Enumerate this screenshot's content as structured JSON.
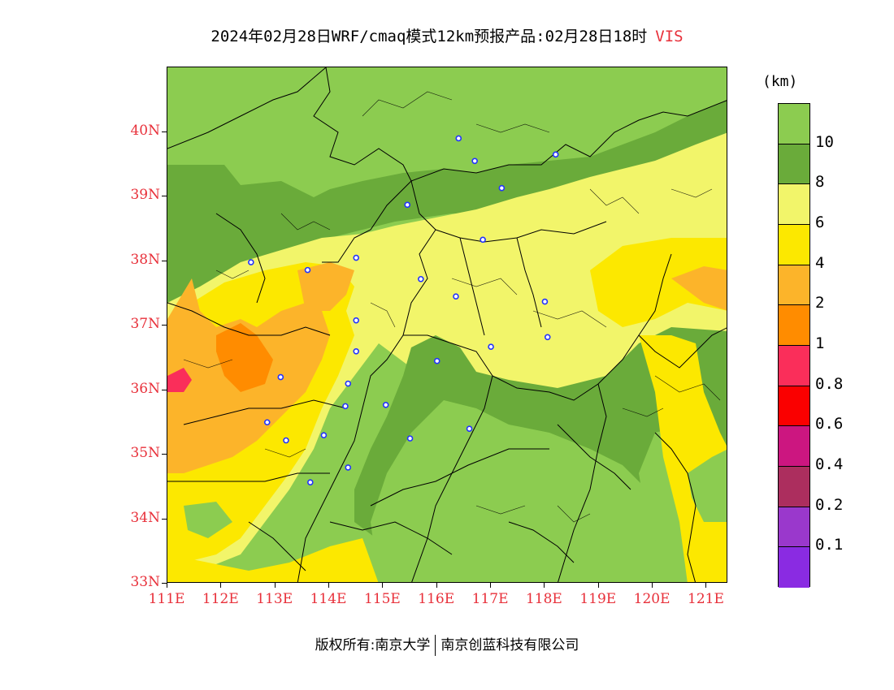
{
  "header": {
    "title": "2024年02月28日WRF/cmaq模式12km预报产品:02月28日18时",
    "variable": "VIS"
  },
  "colors": {
    "label_red": "#e8303a",
    "station_blue": "#2233ff",
    "boundary": "#000000"
  },
  "map": {
    "lat_ticks": [
      "40N",
      "39N",
      "38N",
      "37N",
      "36N",
      "35N",
      "34N",
      "33N"
    ],
    "lon_ticks": [
      "111E",
      "112E",
      "113E",
      "114E",
      "115E",
      "116E",
      "117E",
      "118E",
      "119E",
      "120E",
      "121E"
    ],
    "lon_range": [
      111,
      121.4
    ],
    "lat_range": [
      33,
      41
    ],
    "stations": [
      {
        "lon": 116.4,
        "lat": 39.9
      },
      {
        "lon": 116.7,
        "lat": 39.55
      },
      {
        "lon": 117.2,
        "lat": 39.13
      },
      {
        "lon": 118.2,
        "lat": 39.65
      },
      {
        "lon": 115.45,
        "lat": 38.87
      },
      {
        "lon": 116.85,
        "lat": 38.33
      },
      {
        "lon": 112.55,
        "lat": 37.98
      },
      {
        "lon": 113.6,
        "lat": 37.86
      },
      {
        "lon": 114.5,
        "lat": 38.05
      },
      {
        "lon": 115.7,
        "lat": 37.72
      },
      {
        "lon": 116.35,
        "lat": 37.45
      },
      {
        "lon": 118.0,
        "lat": 37.37
      },
      {
        "lon": 114.5,
        "lat": 37.08
      },
      {
        "lon": 118.05,
        "lat": 36.82
      },
      {
        "lon": 117.0,
        "lat": 36.67
      },
      {
        "lon": 114.5,
        "lat": 36.6
      },
      {
        "lon": 116.0,
        "lat": 36.45
      },
      {
        "lon": 113.1,
        "lat": 36.2
      },
      {
        "lon": 114.35,
        "lat": 36.1
      },
      {
        "lon": 115.05,
        "lat": 35.77
      },
      {
        "lon": 114.3,
        "lat": 35.75
      },
      {
        "lon": 112.85,
        "lat": 35.5
      },
      {
        "lon": 116.6,
        "lat": 35.4
      },
      {
        "lon": 113.9,
        "lat": 35.3
      },
      {
        "lon": 113.2,
        "lat": 35.22
      },
      {
        "lon": 115.5,
        "lat": 35.25
      },
      {
        "lon": 114.35,
        "lat": 34.8
      },
      {
        "lon": 113.65,
        "lat": 34.57
      }
    ]
  },
  "legend": {
    "unit": "(km)",
    "segments": [
      {
        "color": "#8ccc50"
      },
      {
        "color": "#6aab3a"
      },
      {
        "color": "#f2f56a"
      },
      {
        "color": "#fce800"
      },
      {
        "color": "#fcb42a"
      },
      {
        "color": "#ff8c00"
      },
      {
        "color": "#fa2e5a"
      },
      {
        "color": "#fa0000"
      },
      {
        "color": "#cc1680"
      },
      {
        "color": "#ac2e5e"
      },
      {
        "color": "#9a38cc"
      },
      {
        "color": "#8a2be2"
      }
    ],
    "labels": [
      "10",
      "8",
      "6",
      "4",
      "2",
      "1",
      "0.8",
      "0.6",
      "0.4",
      "0.2",
      "0.1"
    ]
  },
  "footer": {
    "copyright": "版权所有:南京大学",
    "company": "南京创蓝科技有限公司"
  }
}
